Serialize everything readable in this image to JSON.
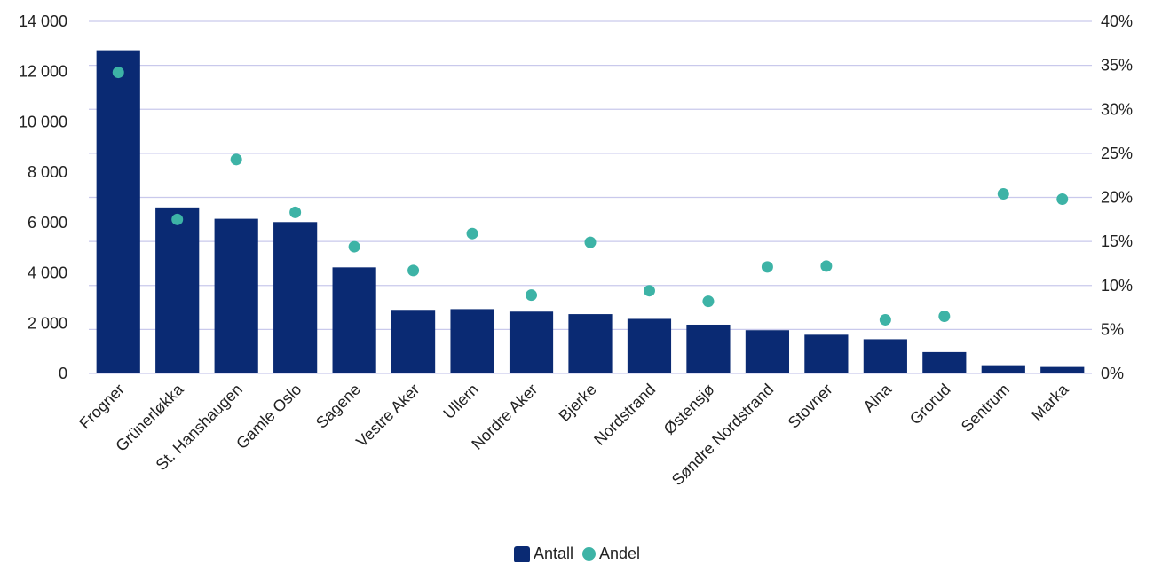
{
  "chart_data": {
    "type": "bar",
    "categories": [
      "Frogner",
      "Grünerløkka",
      "St. Hanshaugen",
      "Gamle Oslo",
      "Sagene",
      "Vestre Aker",
      "Ullern",
      "Nordre Aker",
      "Bjerke",
      "Nordstrand",
      "Østensjø",
      "Søndre Nordstrand",
      "Stovner",
      "Alna",
      "Grorud",
      "Sentrum",
      "Marka"
    ],
    "series": [
      {
        "name": "Antall",
        "type": "bar",
        "axis": "left",
        "color": "#0a2a73",
        "values": [
          12850,
          6600,
          6150,
          6020,
          4220,
          2530,
          2560,
          2460,
          2360,
          2170,
          1940,
          1720,
          1540,
          1360,
          850,
          330,
          260
        ]
      },
      {
        "name": "Andel",
        "type": "scatter",
        "axis": "right",
        "color": "#3db3a6",
        "values": [
          34.2,
          17.5,
          24.3,
          18.3,
          14.4,
          11.7,
          15.9,
          8.9,
          14.9,
          9.4,
          8.2,
          12.1,
          12.2,
          6.1,
          6.5,
          20.4,
          19.8
        ]
      }
    ],
    "ylim": [
      0,
      14000
    ],
    "yticks": [
      "0",
      "2 000",
      "4 000",
      "6 000",
      "8 000",
      "10 000",
      "12 000",
      "14 000"
    ],
    "y2lim": [
      0,
      40
    ],
    "y2ticks": [
      "0%",
      "5%",
      "10%",
      "15%",
      "20%",
      "25%",
      "30%",
      "35%",
      "40%"
    ],
    "grid": true,
    "grid_color": "#c9c9ec",
    "legend_position": "bottom"
  }
}
